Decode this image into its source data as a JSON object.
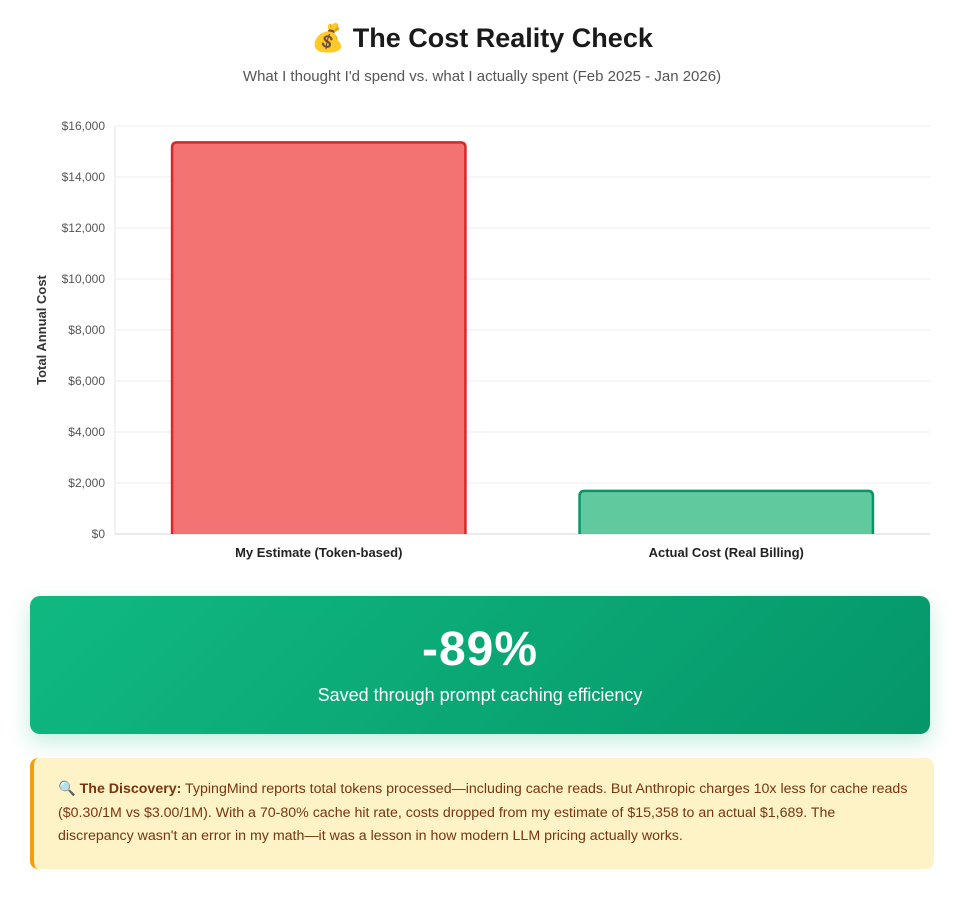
{
  "header": {
    "title_emoji": "💰",
    "title": "The Cost Reality Check",
    "subtitle": "What I thought I'd spend vs. what I actually spent (Feb 2025 - Jan 2026)"
  },
  "chart_data": {
    "type": "bar",
    "categories": [
      "My Estimate (Token-based)",
      "Actual Cost (Real Billing)"
    ],
    "values": [
      15358,
      1689
    ],
    "ylabel": "Total Annual Cost",
    "ylim": [
      0,
      16000
    ],
    "yticks": [
      0,
      2000,
      4000,
      6000,
      8000,
      10000,
      12000,
      14000,
      16000
    ],
    "ytick_labels": [
      "$0",
      "$2,000",
      "$4,000",
      "$6,000",
      "$8,000",
      "$10,000",
      "$12,000",
      "$14,000",
      "$16,000"
    ],
    "grid": true,
    "legend": "none",
    "colors": {
      "fill": [
        "#f37272",
        "#60c99d"
      ],
      "stroke": [
        "#dc2626",
        "#059669"
      ]
    }
  },
  "savings": {
    "value": "-89%",
    "caption": "Saved through prompt caching efficiency"
  },
  "note": {
    "icon": "magnifier-icon",
    "emoji": "🔍",
    "heading": "The Discovery:",
    "text": "TypingMind reports total tokens processed—including cache reads. But Anthropic charges 10x less for cache reads ($0.30/1M vs $3.00/1M). With a 70-80% cache hit rate, costs dropped from my estimate of $15,358 to an actual $1,689. The discrepancy wasn't an error in my math—it was a lesson in how modern LLM pricing actually works."
  }
}
